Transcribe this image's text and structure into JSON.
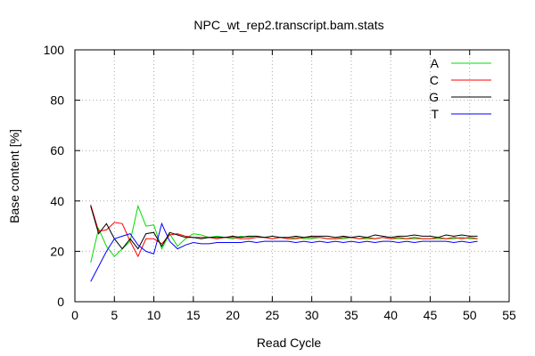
{
  "chart_data": {
    "type": "line",
    "title": "NPC_wt_rep2.transcript.bam.stats",
    "xlabel": "Read Cycle",
    "ylabel": "Base content [%]",
    "xlim": [
      0,
      55
    ],
    "ylim": [
      0,
      100
    ],
    "xticks": [
      0,
      5,
      10,
      15,
      20,
      25,
      30,
      35,
      40,
      45,
      50,
      55
    ],
    "yticks": [
      0,
      20,
      40,
      60,
      80,
      100
    ],
    "grid": true,
    "legend_position": "top-right",
    "x": [
      2,
      3,
      4,
      5,
      6,
      7,
      8,
      9,
      10,
      11,
      12,
      13,
      14,
      15,
      16,
      17,
      18,
      19,
      20,
      21,
      22,
      23,
      24,
      25,
      26,
      27,
      28,
      29,
      30,
      31,
      32,
      33,
      34,
      35,
      36,
      37,
      38,
      39,
      40,
      41,
      42,
      43,
      44,
      45,
      46,
      47,
      48,
      49,
      50,
      51
    ],
    "series": [
      {
        "name": "A",
        "color": "#00dd00",
        "values": [
          15.5,
          29,
          22,
          18,
          21,
          24,
          38,
          30,
          30.5,
          21,
          27,
          22,
          25,
          27,
          26.5,
          25.5,
          26,
          25.5,
          25,
          26,
          25.5,
          26,
          25.5,
          25,
          25.5,
          25,
          25.5,
          25,
          25,
          25.5,
          25,
          25,
          25,
          25.5,
          25,
          25,
          25,
          25.5,
          25,
          25,
          25,
          25,
          25,
          25,
          25,
          25,
          25,
          25.5,
          25,
          25
        ]
      },
      {
        "name": "C",
        "color": "#ff0000",
        "values": [
          38.5,
          28,
          28.5,
          31.5,
          31,
          24,
          18,
          25,
          25,
          23,
          26.5,
          27,
          26,
          25.5,
          25.5,
          25.5,
          25,
          25.5,
          25.5,
          25,
          25,
          25.5,
          25.5,
          25,
          25.5,
          25,
          25,
          25.5,
          25.5,
          25.5,
          25,
          25,
          25.5,
          25.5,
          25,
          25.5,
          25,
          25.5,
          25,
          25.5,
          25,
          25.5,
          25,
          25,
          25.5,
          25,
          25.5,
          25,
          25.5,
          25
        ]
      },
      {
        "name": "G",
        "color": "#000000",
        "values": [
          38,
          27,
          31,
          25,
          21,
          25,
          21,
          27,
          27.5,
          22,
          27.5,
          26.5,
          25.5,
          25.5,
          25,
          25.5,
          25.5,
          25.5,
          26,
          25.5,
          26,
          26,
          25.5,
          26,
          25.5,
          25.5,
          26,
          25.5,
          26,
          26,
          26,
          25.5,
          26,
          25.5,
          26,
          25.5,
          26.5,
          26,
          25.5,
          26,
          26,
          26.5,
          26,
          26,
          25.5,
          26.5,
          26,
          26.5,
          26,
          26
        ]
      },
      {
        "name": "T",
        "color": "#0000ff",
        "values": [
          8,
          14,
          20,
          25,
          26,
          27,
          22.5,
          20,
          19,
          31,
          24,
          21,
          22.5,
          23.5,
          23,
          23,
          23.5,
          23.5,
          23.5,
          23.5,
          24,
          23.5,
          24,
          24,
          24,
          24,
          23.5,
          24,
          23.5,
          24,
          23.5,
          24,
          23.5,
          24,
          23.5,
          24,
          23.5,
          24,
          24,
          23.5,
          24,
          23.5,
          24,
          24,
          24,
          24,
          23.5,
          24,
          23.5,
          24
        ]
      }
    ]
  }
}
